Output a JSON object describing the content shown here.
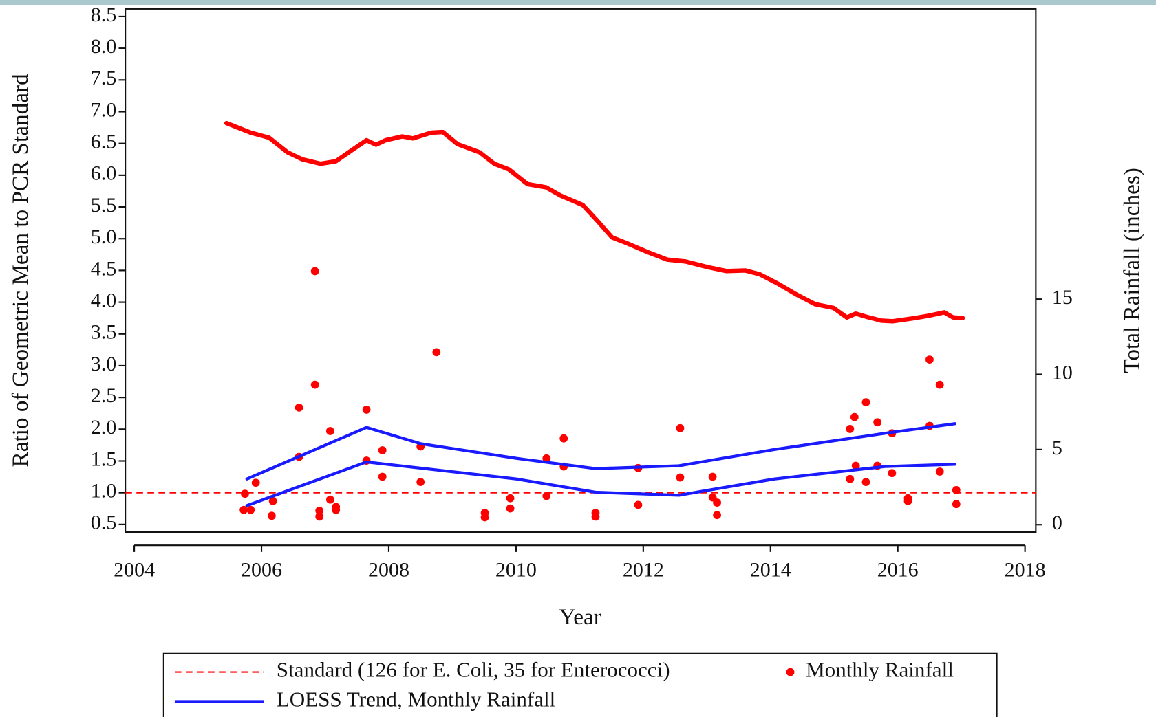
{
  "chart_data": {
    "type": "line",
    "xlabel": "Year",
    "ylabel": "Ratio of Geometric Mean to PCR Standard",
    "y2label": "Total Rainfall (inches)",
    "xlim": [
      2003.86,
      2018.17
    ],
    "xticks": [
      2004,
      2006,
      2008,
      2010,
      2012,
      2014,
      2016,
      2018
    ],
    "ylim": [
      0.38,
      8.62
    ],
    "yticks": [
      0.5,
      {
        "value": 1,
        "label": "1.0"
      },
      1.5,
      {
        "value": 2,
        "label": "2.0"
      },
      2.5,
      {
        "value": 3,
        "label": "3.0"
      },
      3.5,
      {
        "value": 4,
        "label": "4.0"
      },
      4.5,
      {
        "value": 5,
        "label": "5.0"
      },
      5.5,
      {
        "value": 6,
        "label": "6.0"
      },
      6.5,
      {
        "value": 7,
        "label": "7.0"
      },
      7.5,
      {
        "value": 8,
        "label": "8.0"
      },
      8.5
    ],
    "y2lim": [
      -0.49,
      34.31
    ],
    "y2ticks": [
      0,
      5,
      10,
      15
    ],
    "legend": "bottom",
    "series": [
      {
        "kind": "line",
        "color": "#ff0000",
        "width": 6,
        "x": [
          2005.45,
          2005.83,
          2006.12,
          2006.41,
          2006.64,
          2006.93,
          2007.17,
          2007.4,
          2007.65,
          2007.8,
          2007.95,
          2008.21,
          2008.38,
          2008.67,
          2008.85,
          2009.08,
          2009.43,
          2009.66,
          2009.89,
          2010.18,
          2010.47,
          2010.7,
          2011.05,
          2011.28,
          2011.51,
          2011.74,
          2012.09,
          2012.38,
          2012.67,
          2013.02,
          2013.31,
          2013.6,
          2013.83,
          2014.12,
          2014.41,
          2014.7,
          2014.99,
          2015.2,
          2015.34,
          2015.51,
          2015.74,
          2015.92,
          2016.27,
          2016.5,
          2016.73,
          2016.87,
          2017.02
        ],
        "values": [
          6.82,
          6.67,
          6.59,
          6.36,
          6.25,
          6.18,
          6.22,
          6.38,
          6.55,
          6.48,
          6.55,
          6.61,
          6.58,
          6.67,
          6.68,
          6.49,
          6.36,
          6.18,
          6.09,
          5.86,
          5.81,
          5.68,
          5.53,
          5.28,
          5.02,
          4.93,
          4.78,
          4.67,
          4.64,
          4.55,
          4.49,
          4.5,
          4.44,
          4.29,
          4.12,
          3.97,
          3.91,
          3.76,
          3.82,
          3.77,
          3.71,
          3.7,
          3.75,
          3.79,
          3.84,
          3.76,
          3.75
        ]
      },
      {
        "kind": "hline",
        "name": "Standard (126 for E. Coli, 35 for Enterococci)",
        "color": "#ff0000",
        "dash": true,
        "width": 2,
        "values": [
          1
        ]
      },
      {
        "kind": "scatter",
        "name": "Monthly Rainfall",
        "color": "#ff0000",
        "axis": "y2",
        "x": [
          2005.74,
          2005.72,
          2005.83,
          2005.91,
          2006.18,
          2006.16,
          2006.59,
          2006.59,
          2006.84,
          2006.84,
          2006.91,
          2006.91,
          2007.08,
          2007.08,
          2007.17,
          2007.17,
          2007.65,
          2007.65,
          2007.9,
          2007.9,
          2008.5,
          2008.5,
          2008.75,
          2009.51,
          2009.51,
          2009.91,
          2009.91,
          2010.48,
          2010.48,
          2010.75,
          2010.75,
          2011.25,
          2011.25,
          2011.92,
          2011.92,
          2012.58,
          2012.58,
          2013.09,
          2013.09,
          2013.16,
          2013.16,
          2015.25,
          2015.32,
          2015.25,
          2015.34,
          2015.5,
          2015.5,
          2015.68,
          2015.68,
          2015.91,
          2015.91,
          2016.16,
          2016.16,
          2016.5,
          2016.5,
          2016.66,
          2016.66,
          2016.92,
          2016.92
        ],
        "values": [
          2.06,
          0.98,
          0.98,
          2.79,
          1.57,
          0.59,
          7.79,
          4.51,
          16.86,
          9.31,
          0.93,
          0.54,
          6.23,
          1.67,
          1.18,
          0.98,
          7.65,
          4.26,
          4.95,
          3.19,
          5.2,
          2.84,
          11.47,
          0.78,
          0.49,
          1.76,
          1.08,
          4.41,
          1.91,
          5.74,
          3.87,
          0.78,
          0.54,
          3.77,
          1.32,
          6.42,
          3.14,
          3.19,
          1.81,
          1.47,
          0.64,
          6.37,
          7.16,
          3.04,
          3.92,
          8.14,
          2.84,
          6.81,
          3.92,
          6.08,
          3.43,
          1.76,
          1.57,
          10.98,
          6.57,
          9.31,
          3.53,
          2.3,
          1.37
        ]
      },
      {
        "kind": "line",
        "name": "LOESS Trend, Monthly Rainfall",
        "color": "#1a1aff",
        "width": 4,
        "axis": "y2",
        "x": [
          2005.77,
          2007.65,
          2008.5,
          2010.01,
          2011.25,
          2012.56,
          2014.06,
          2015.8,
          2016.9
        ],
        "values": [
          3.04,
          6.47,
          5.39,
          4.41,
          3.73,
          3.92,
          5.0,
          6.08,
          6.72
        ]
      },
      {
        "kind": "line",
        "color": "#1a1aff",
        "width": 4,
        "axis": "y2",
        "x": [
          2005.77,
          2007.65,
          2010.01,
          2011.25,
          2012.56,
          2014.06,
          2015.8,
          2016.9
        ],
        "values": [
          1.27,
          4.17,
          3.04,
          2.16,
          1.96,
          3.04,
          3.87,
          4.02
        ]
      }
    ]
  }
}
